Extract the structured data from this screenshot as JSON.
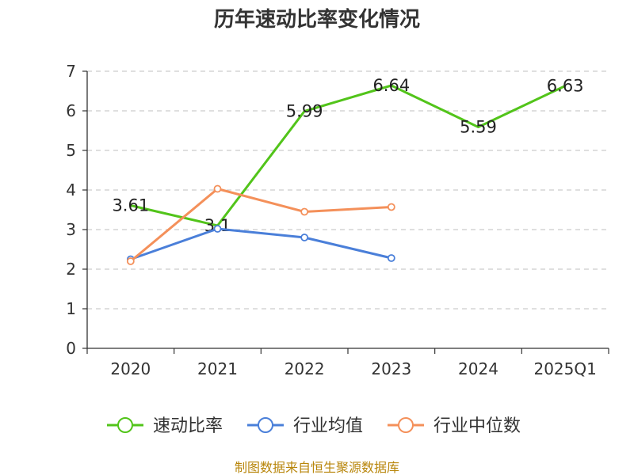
{
  "chart_data": {
    "type": "line",
    "title": "历年速动比率变化情况",
    "categories": [
      "2020",
      "2021",
      "2022",
      "2023",
      "2024",
      "2025Q1"
    ],
    "ylim": [
      0,
      7
    ],
    "yticks": [
      "0",
      "1",
      "2",
      "3",
      "4",
      "5",
      "6",
      "7"
    ],
    "grid": true,
    "legend_position": "bottom",
    "series": [
      {
        "name": "速动比率",
        "color": "#52c41a",
        "values": [
          3.61,
          3.1,
          5.99,
          6.64,
          5.59,
          6.63
        ],
        "labels": [
          "3.61",
          "3.1",
          "5.99",
          "6.64",
          "5.59",
          "6.63"
        ],
        "show_markers": false
      },
      {
        "name": "行业均值",
        "color": "#4a7fd9",
        "values": [
          2.25,
          3.02,
          2.8,
          2.28,
          null,
          null
        ],
        "show_markers": true
      },
      {
        "name": "行业中位数",
        "color": "#f4905a",
        "values": [
          2.2,
          4.03,
          3.45,
          3.57,
          null,
          null
        ],
        "show_markers": true
      }
    ]
  },
  "source_text": "制图数据来自恒生聚源数据库"
}
